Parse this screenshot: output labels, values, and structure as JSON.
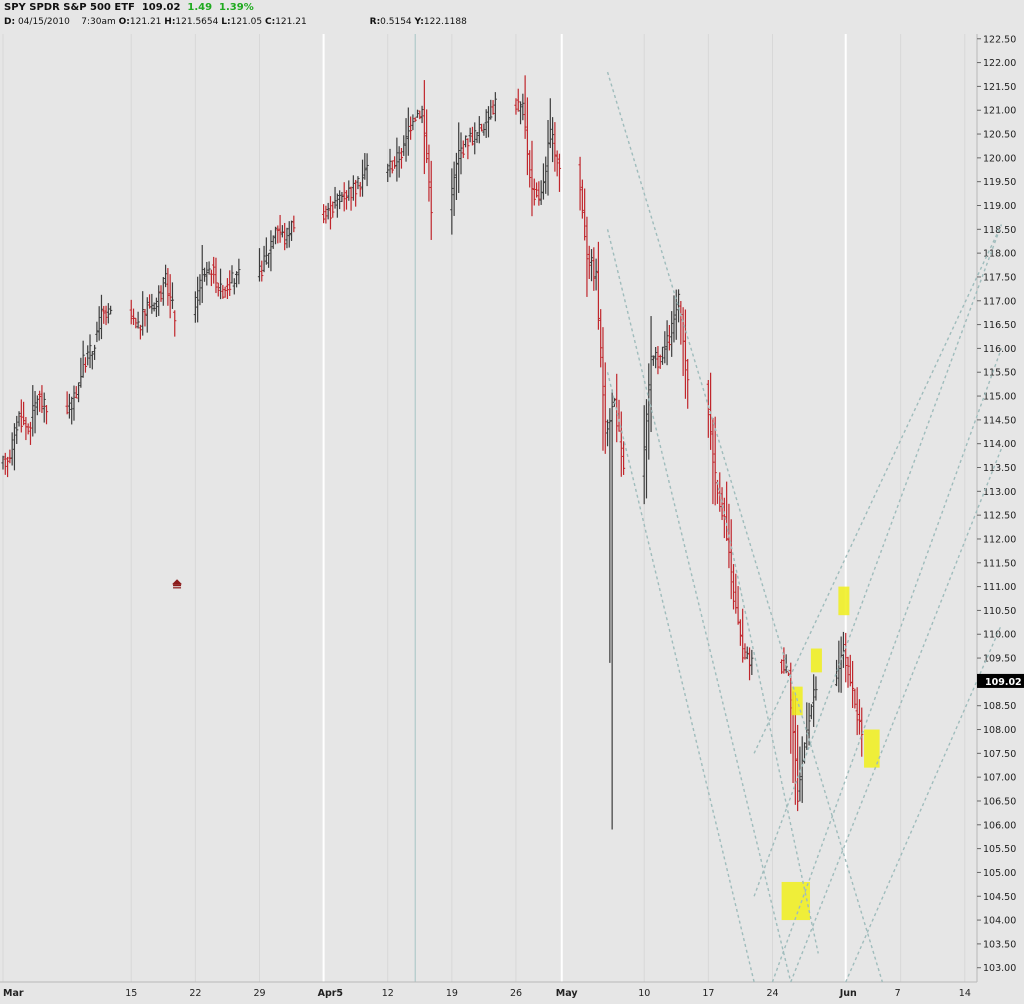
{
  "header": {
    "symbol": "SPY",
    "name": "SPDR S&P 500 ETF",
    "last": "109.02",
    "change": "1.49",
    "change_pct": "1.39%",
    "date_label": "D:",
    "date": "04/15/2010",
    "time": "7:30am",
    "o_label": "O:",
    "o": "121.21",
    "h_label": "H:",
    "h": "121.5654",
    "l_label": "L:",
    "l": "121.05",
    "c_label": "C:",
    "c": "121.21",
    "r_label": "R:",
    "r": "0.5154",
    "y_label": "Y:",
    "y": "122.1188"
  },
  "colors": {
    "background": "#e6e6e6",
    "up_bar": "#3c3c3c",
    "down_bar": "#c0262c",
    "trendline": "#9fbcbc",
    "highlight": "#f0ee1a",
    "price_tag": "#000000",
    "marker": "#8b1a1a"
  },
  "chart_data": {
    "type": "ohlc",
    "ylim": [
      102.7,
      122.6
    ],
    "yticks": [
      103.0,
      103.5,
      104.0,
      104.5,
      105.0,
      105.5,
      106.0,
      106.5,
      107.0,
      107.5,
      108.0,
      108.5,
      109.0,
      109.5,
      110.0,
      110.5,
      111.0,
      111.5,
      112.0,
      112.5,
      113.0,
      113.5,
      114.0,
      114.5,
      115.0,
      115.5,
      116.0,
      116.5,
      117.0,
      117.5,
      118.0,
      118.5,
      119.0,
      119.5,
      120.0,
      120.5,
      121.0,
      121.5,
      122.0,
      122.5
    ],
    "ytick_labels": [
      "103.00",
      "103.50",
      "104.00",
      "104.50",
      "105.00",
      "105.50",
      "106.00",
      "106.50",
      "107.00",
      "107.50",
      "108.00",
      "108.50",
      "109.00",
      "109.50",
      "110.00",
      "110.50",
      "111.00",
      "111.50",
      "112.00",
      "112.50",
      "113.00",
      "113.50",
      "114.00",
      "114.50",
      "115.00",
      "115.50",
      "116.00",
      "116.50",
      "117.00",
      "117.50",
      "118.00",
      "118.50",
      "119.00",
      "119.50",
      "120.00",
      "120.50",
      "121.00",
      "121.50",
      "122.00",
      "122.50"
    ],
    "xticks": [
      {
        "label": "Mar",
        "day": 0,
        "bold": true,
        "major": false
      },
      {
        "label": "15",
        "day": 14,
        "bold": false,
        "major": false
      },
      {
        "label": "22",
        "day": 21,
        "bold": false,
        "major": false
      },
      {
        "label": "29",
        "day": 28,
        "bold": false,
        "major": false
      },
      {
        "label": "Apr5",
        "day": 35,
        "bold": true,
        "major": true
      },
      {
        "label": "12",
        "day": 42,
        "bold": false,
        "major": false
      },
      {
        "label": "19",
        "day": 49,
        "bold": false,
        "major": false
      },
      {
        "label": "26",
        "day": 56,
        "bold": false,
        "major": false
      },
      {
        "label": "May",
        "day": 61,
        "bold": true,
        "major": true
      },
      {
        "label": "10",
        "day": 70,
        "bold": false,
        "major": false
      },
      {
        "label": "17",
        "day": 77,
        "bold": false,
        "major": false
      },
      {
        "label": "24",
        "day": 84,
        "bold": false,
        "major": false
      },
      {
        "label": "Jun",
        "day": 92,
        "bold": true,
        "major": true
      },
      {
        "label": "7",
        "day": 98,
        "bold": false,
        "major": false
      },
      {
        "label": "14",
        "day": 105,
        "bold": false,
        "major": false
      }
    ],
    "x_range_days": [
      0,
      109
    ],
    "cursor_day": 45,
    "current_price": "109.02",
    "current_value": 109.02,
    "trading_days": [
      0,
      1,
      2,
      3,
      4,
      7,
      8,
      9,
      10,
      11,
      14,
      15,
      16,
      17,
      18,
      21,
      22,
      23,
      24,
      25,
      28,
      29,
      30,
      31,
      35,
      36,
      37,
      38,
      39,
      42,
      43,
      44,
      45,
      46,
      49,
      50,
      51,
      52,
      53,
      56,
      57,
      58,
      59,
      60,
      63,
      64,
      65,
      66,
      67,
      70,
      71,
      72,
      73,
      74,
      77,
      78,
      79,
      80,
      81,
      85,
      86,
      87,
      88,
      91,
      92,
      93
    ],
    "daily_close": [
      113.8,
      114.6,
      114.3,
      115.0,
      114.7,
      114.9,
      115.7,
      116.0,
      116.7,
      116.7,
      116.4,
      116.9,
      117.0,
      117.4,
      116.7,
      117.6,
      117.7,
      117.2,
      117.4,
      117.5,
      117.9,
      118.6,
      118.3,
      118.7,
      118.9,
      119.2,
      119.3,
      119.4,
      119.8,
      119.9,
      120.2,
      120.9,
      121.0,
      119.0,
      120.1,
      120.4,
      120.5,
      120.8,
      121.2,
      121.0,
      119.3,
      119.2,
      120.5,
      119.8,
      118.0,
      117.5,
      114.3,
      114.9,
      113.4,
      115.7,
      115.8,
      116.2,
      117.0,
      115.2,
      113.3,
      112.4,
      110.8,
      109.6,
      109.4,
      109.3,
      106.6,
      108.1,
      108.9,
      109.7,
      108.7,
      107.9
    ],
    "bars_per_day": 4,
    "markers": [
      {
        "day": 19,
        "value": 111.05,
        "shape": "arrow-up"
      }
    ],
    "trendlines": [
      {
        "from": [
          66,
          121.8
        ],
        "to": [
          96,
          102.7
        ]
      },
      {
        "from": [
          66,
          118.5
        ],
        "to": [
          86,
          102.7
        ]
      },
      {
        "from": [
          66,
          115.5
        ],
        "to": [
          82,
          102.7
        ]
      },
      {
        "from": [
          78,
          113.2
        ],
        "to": [
          89,
          103.3
        ]
      },
      {
        "from": [
          82,
          104.5
        ],
        "to": [
          109,
          118.6
        ]
      },
      {
        "from": [
          84,
          102.7
        ],
        "to": [
          109,
          116.0
        ]
      },
      {
        "from": [
          82,
          107.5
        ],
        "to": [
          109,
          118.6
        ]
      },
      {
        "from": [
          86,
          102.7
        ],
        "to": [
          109,
          113.9
        ]
      },
      {
        "from": [
          92,
          102.7
        ],
        "to": [
          109,
          110.2
        ]
      }
    ],
    "highlights": [
      {
        "day_from": 86.1,
        "day_to": 87.3,
        "low": 108.3,
        "high": 108.9
      },
      {
        "day_from": 88.2,
        "day_to": 89.4,
        "low": 109.2,
        "high": 109.7
      },
      {
        "day_from": 91.2,
        "day_to": 92.4,
        "low": 110.4,
        "high": 111.0
      },
      {
        "day_from": 94.0,
        "day_to": 95.7,
        "low": 107.2,
        "high": 108.0
      },
      {
        "day_from": 85.0,
        "day_to": 88.1,
        "low": 104.0,
        "high": 104.8
      }
    ]
  }
}
